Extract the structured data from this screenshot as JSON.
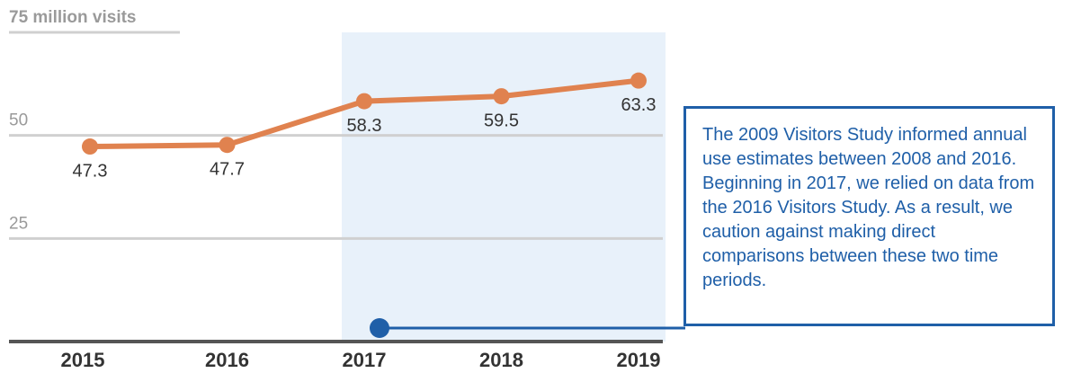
{
  "chart_data": {
    "type": "line",
    "categories": [
      "2015",
      "2016",
      "2017",
      "2018",
      "2019"
    ],
    "series": [
      {
        "name": "Visits",
        "color": "#e0824f",
        "values": [
          47.3,
          47.7,
          58.3,
          59.5,
          63.3
        ]
      }
    ],
    "ylim": [
      0,
      75
    ],
    "yticks": [
      {
        "value": 75,
        "label": "75 million visits"
      },
      50,
      25
    ],
    "grid": true,
    "annotation": "The 2009 Visitors Study informed annual use estimates between 2008 and 2016. Beginning in 2017, we relied on data from the 2016 Visitors Study. As a result, we caution against making direct comparisons between these two time periods."
  }
}
